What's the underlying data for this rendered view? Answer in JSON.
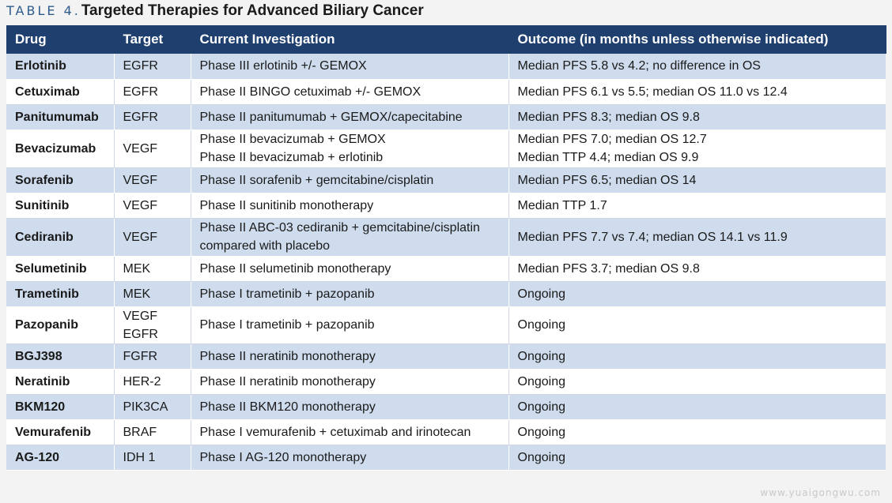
{
  "title": {
    "label": "TABLE 4",
    "dot": ".",
    "text": "Targeted Therapies for Advanced Biliary Cancer"
  },
  "headers": [
    "Drug",
    "Target",
    "Current Investigation",
    "Outcome (in months unless otherwise indicated)"
  ],
  "rows": [
    {
      "drug": "Erlotinib",
      "target": [
        "EGFR"
      ],
      "investigation": [
        "Phase III erlotinib +/- GEMOX"
      ],
      "outcome": [
        "Median PFS 5.8 vs 4.2; no difference in OS"
      ]
    },
    {
      "drug": "Cetuximab",
      "target": [
        "EGFR"
      ],
      "investigation": [
        "Phase II BINGO cetuximab +/- GEMOX"
      ],
      "outcome": [
        "Median PFS 6.1 vs 5.5; median OS 11.0 vs 12.4"
      ]
    },
    {
      "drug": "Panitumumab",
      "target": [
        "EGFR"
      ],
      "investigation": [
        "Phase II panitumumab + GEMOX/capecitabine"
      ],
      "outcome": [
        "Median PFS 8.3; median OS 9.8"
      ]
    },
    {
      "drug": "Bevacizumab",
      "target": [
        "VEGF"
      ],
      "investigation": [
        "Phase II bevacizumab + GEMOX",
        "Phase II bevacizumab + erlotinib"
      ],
      "outcome": [
        "Median PFS 7.0; median OS 12.7",
        "Median TTP 4.4; median OS 9.9"
      ]
    },
    {
      "drug": "Sorafenib",
      "target": [
        "VEGF"
      ],
      "investigation": [
        "Phase II sorafenib + gemcitabine/cisplatin"
      ],
      "outcome": [
        "Median PFS 6.5; median OS 14"
      ]
    },
    {
      "drug": "Sunitinib",
      "target": [
        "VEGF"
      ],
      "investigation": [
        "Phase II sunitinib monotherapy"
      ],
      "outcome": [
        "Median TTP 1.7"
      ]
    },
    {
      "drug": "Cediranib",
      "target": [
        "VEGF"
      ],
      "investigation": [
        "Phase II ABC-03 cediranib + gemcitabine/cisplatin",
        "compared with placebo"
      ],
      "outcome": [
        "Median PFS 7.7 vs 7.4; median OS 14.1 vs 11.9"
      ]
    },
    {
      "drug": "Selumetinib",
      "target": [
        "MEK"
      ],
      "investigation": [
        "Phase II selumetinib monotherapy"
      ],
      "outcome": [
        "Median PFS 3.7; median OS 9.8"
      ]
    },
    {
      "drug": "Trametinib",
      "target": [
        "MEK"
      ],
      "investigation": [
        "Phase I trametinib + pazopanib"
      ],
      "outcome": [
        "Ongoing"
      ]
    },
    {
      "drug": "Pazopanib",
      "target": [
        "VEGF",
        "EGFR"
      ],
      "investigation": [
        "Phase I trametinib + pazopanib"
      ],
      "outcome": [
        "Ongoing"
      ]
    },
    {
      "drug": "BGJ398",
      "target": [
        "FGFR"
      ],
      "investigation": [
        "Phase II neratinib monotherapy"
      ],
      "outcome": [
        "Ongoing"
      ]
    },
    {
      "drug": "Neratinib",
      "target": [
        "HER-2"
      ],
      "investigation": [
        "Phase II neratinib monotherapy"
      ],
      "outcome": [
        "Ongoing"
      ]
    },
    {
      "drug": "BKM120",
      "target": [
        "PIK3CA"
      ],
      "investigation": [
        "Phase II BKM120 monotherapy"
      ],
      "outcome": [
        "Ongoing"
      ]
    },
    {
      "drug": "Vemurafenib",
      "target": [
        "BRAF"
      ],
      "investigation": [
        "Phase I vemurafenib + cetuximab and irinotecan"
      ],
      "outcome": [
        "Ongoing"
      ]
    },
    {
      "drug": "AG-120",
      "target": [
        "IDH 1"
      ],
      "investigation": [
        "Phase I AG-120 monotherapy"
      ],
      "outcome": [
        "Ongoing"
      ]
    }
  ],
  "watermark": "www.yuaigongwu.com"
}
